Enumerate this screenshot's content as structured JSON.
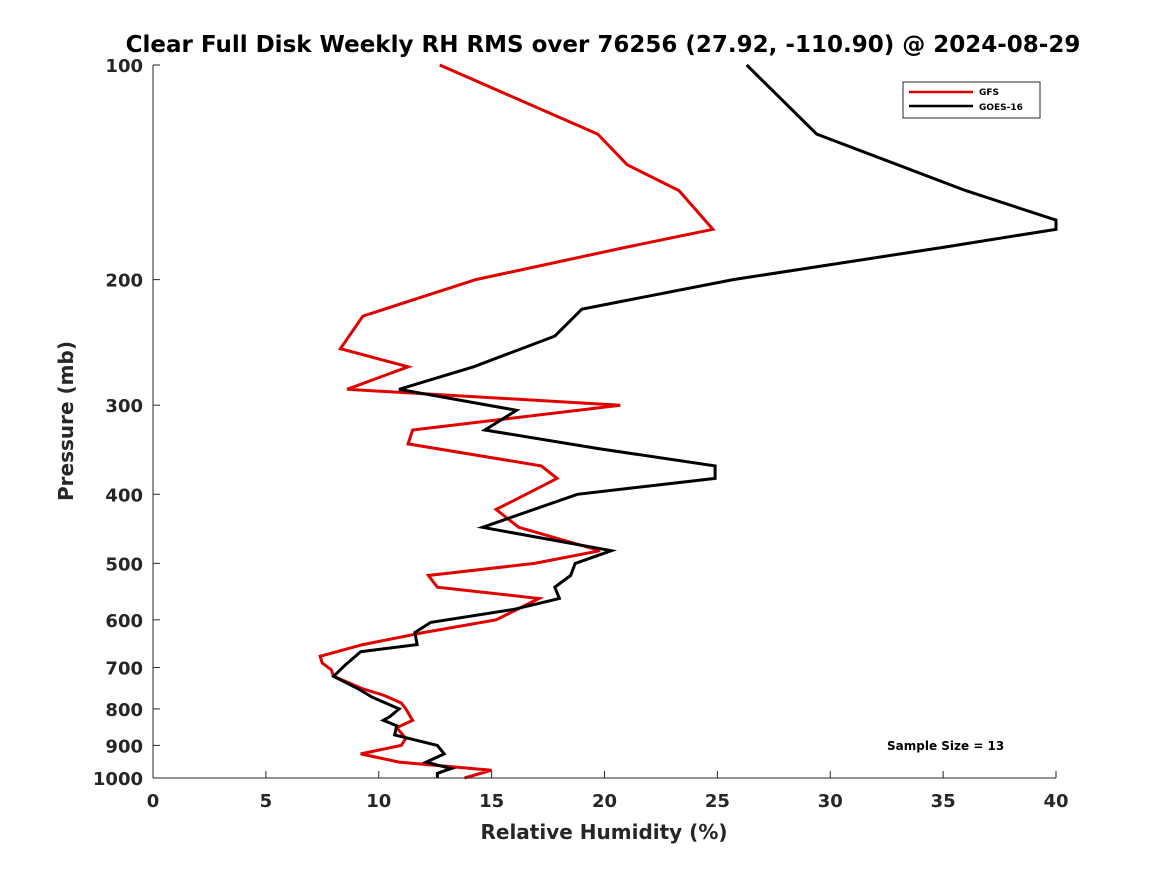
{
  "chart_data": {
    "type": "line",
    "title": "Clear Full Disk Weekly RH RMS over 76256 (27.92, -110.90) @ 2024-08-29",
    "xlabel": "Relative Humidity (%)",
    "ylabel": "Pressure (mb)",
    "xlim": [
      0,
      40
    ],
    "ylim": [
      100,
      1000
    ],
    "y_scale": "log",
    "y_reversed": true,
    "xticks": [
      0,
      5,
      10,
      15,
      20,
      25,
      30,
      35,
      40
    ],
    "yticks": [
      100,
      200,
      300,
      400,
      500,
      600,
      700,
      800,
      900,
      1000
    ],
    "legend_position": "top-right",
    "annotation": "Sample Size = 13",
    "series": [
      {
        "name": "GFS",
        "color": "#e00000",
        "points": [
          [
            12.7,
            100
          ],
          [
            19.7,
            125
          ],
          [
            21.0,
            138
          ],
          [
            23.3,
            150
          ],
          [
            24.8,
            170
          ],
          [
            21.0,
            180
          ],
          [
            14.3,
            200
          ],
          [
            9.3,
            225
          ],
          [
            8.3,
            250
          ],
          [
            11.3,
            265
          ],
          [
            8.6,
            285
          ],
          [
            20.7,
            300
          ],
          [
            11.5,
            325
          ],
          [
            11.3,
            340
          ],
          [
            17.2,
            365
          ],
          [
            17.9,
            380
          ],
          [
            16.2,
            405
          ],
          [
            15.2,
            420
          ],
          [
            16.2,
            445
          ],
          [
            19.8,
            480
          ],
          [
            16.9,
            500
          ],
          [
            12.2,
            520
          ],
          [
            12.6,
            540
          ],
          [
            17.1,
            560
          ],
          [
            15.2,
            600
          ],
          [
            12.0,
            625
          ],
          [
            9.3,
            650
          ],
          [
            7.4,
            675
          ],
          [
            7.5,
            690
          ],
          [
            7.9,
            705
          ],
          [
            8.0,
            720
          ],
          [
            9.3,
            750
          ],
          [
            10.2,
            765
          ],
          [
            11.0,
            785
          ],
          [
            11.2,
            800
          ],
          [
            11.5,
            830
          ],
          [
            10.8,
            850
          ],
          [
            11.2,
            880
          ],
          [
            11.0,
            900
          ],
          [
            9.2,
            925
          ],
          [
            10.9,
            950
          ],
          [
            15.0,
            975
          ],
          [
            13.8,
            1000
          ]
        ]
      },
      {
        "name": "GOES-16",
        "color": "#000000",
        "points": [
          [
            26.3,
            100
          ],
          [
            29.4,
            125
          ],
          [
            36.0,
            150
          ],
          [
            40.0,
            165
          ],
          [
            40.0,
            170
          ],
          [
            35.1,
            180
          ],
          [
            25.7,
            200
          ],
          [
            19.0,
            220
          ],
          [
            17.8,
            240
          ],
          [
            14.2,
            265
          ],
          [
            10.9,
            285
          ],
          [
            16.1,
            305
          ],
          [
            14.7,
            325
          ],
          [
            19.7,
            345
          ],
          [
            24.9,
            365
          ],
          [
            24.9,
            380
          ],
          [
            18.8,
            400
          ],
          [
            14.6,
            445
          ],
          [
            20.3,
            480
          ],
          [
            18.7,
            500
          ],
          [
            18.5,
            520
          ],
          [
            17.8,
            540
          ],
          [
            18.0,
            560
          ],
          [
            16.0,
            580
          ],
          [
            12.3,
            605
          ],
          [
            11.6,
            625
          ],
          [
            11.7,
            650
          ],
          [
            9.2,
            665
          ],
          [
            8.5,
            695
          ],
          [
            8.0,
            720
          ],
          [
            9.1,
            750
          ],
          [
            9.7,
            770
          ],
          [
            10.9,
            800
          ],
          [
            10.5,
            820
          ],
          [
            10.2,
            830
          ],
          [
            10.8,
            845
          ],
          [
            10.7,
            870
          ],
          [
            12.6,
            900
          ],
          [
            12.9,
            925
          ],
          [
            12.1,
            950
          ],
          [
            13.2,
            970
          ],
          [
            12.6,
            985
          ],
          [
            12.6,
            1000
          ]
        ]
      }
    ]
  }
}
